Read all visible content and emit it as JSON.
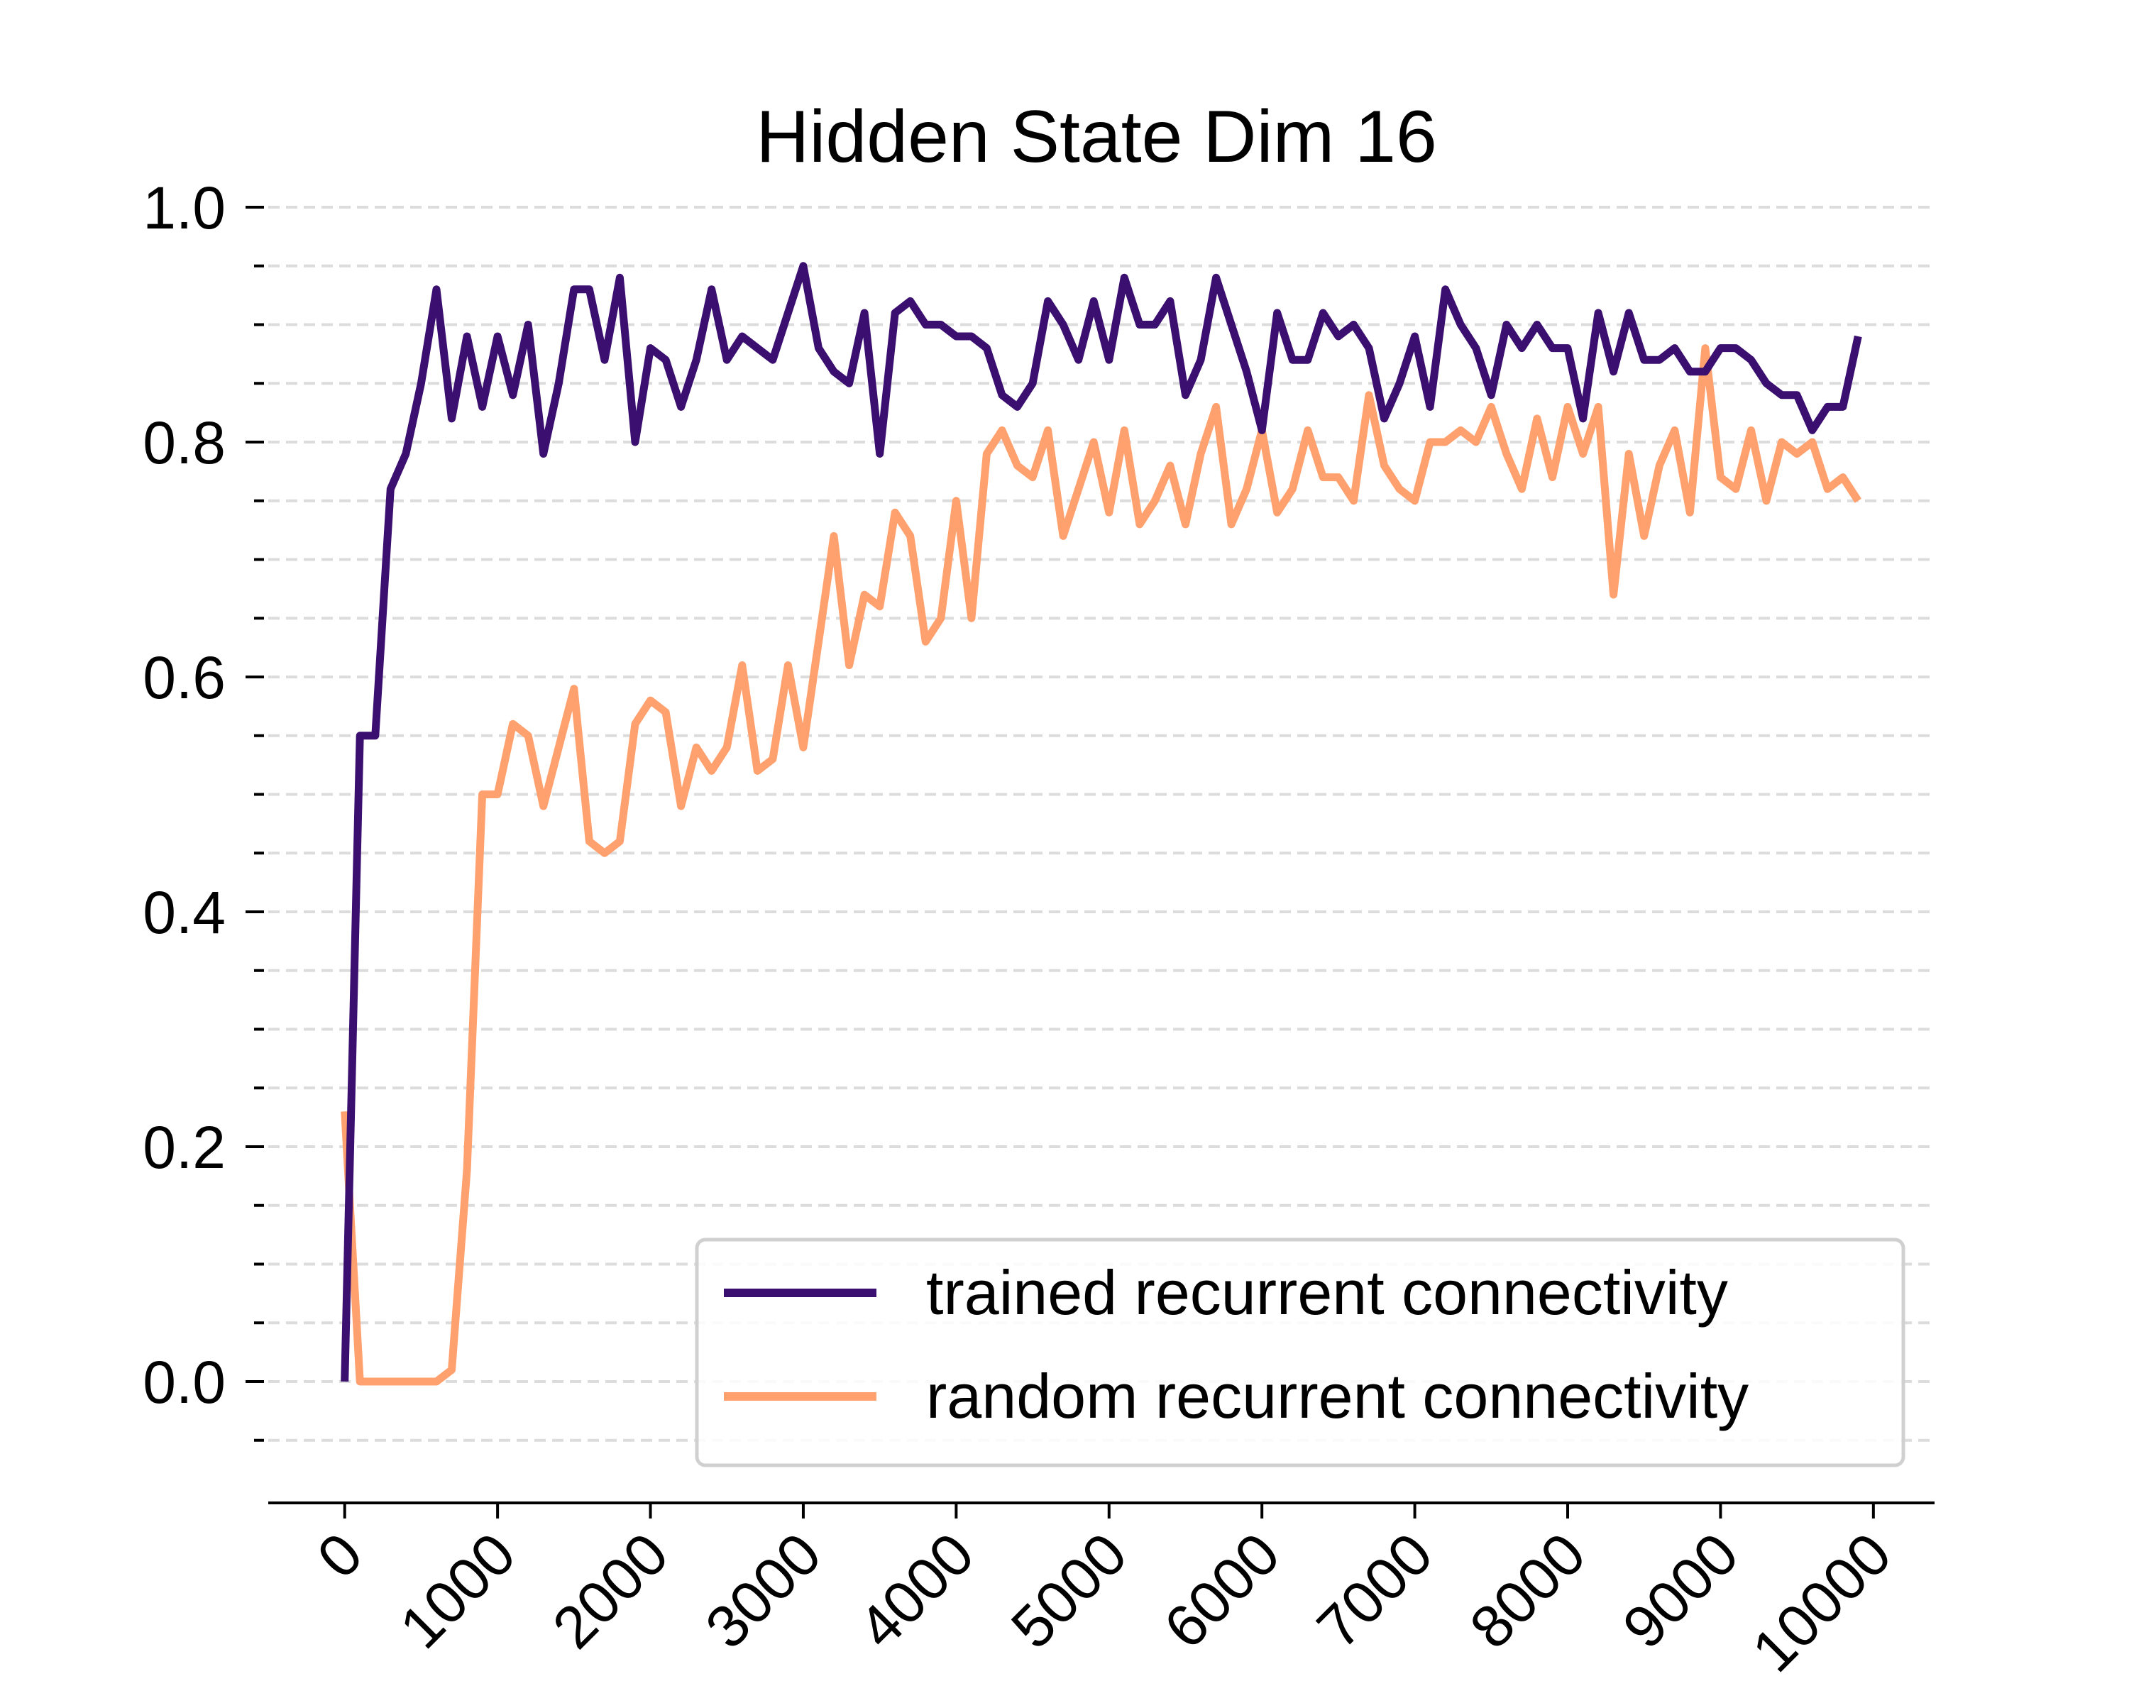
{
  "chart_data": {
    "type": "line",
    "title": "Hidden State Dim 16",
    "xlabel": "",
    "ylabel": "",
    "xlim": [
      -500,
      10400
    ],
    "ylim": [
      -0.1,
      1.0
    ],
    "x_ticks": [
      0,
      1000,
      2000,
      3000,
      4000,
      5000,
      6000,
      7000,
      8000,
      9000,
      10000
    ],
    "y_ticks": [
      0.0,
      0.2,
      0.4,
      0.6,
      0.8,
      1.0
    ],
    "y_tick_labels": [
      "0.0",
      "0.2",
      "0.4",
      "0.6",
      "0.8",
      "1.0"
    ],
    "y_minor_step": 0.05,
    "grid": "horizontal dashed at every 0.05",
    "legend_position": "lower right",
    "x": [
      0,
      100,
      200,
      300,
      400,
      500,
      600,
      700,
      800,
      900,
      1000,
      1100,
      1200,
      1300,
      1400,
      1500,
      1600,
      1700,
      1800,
      1900,
      2000,
      2100,
      2200,
      2300,
      2400,
      2500,
      2600,
      2700,
      2800,
      2900,
      3000,
      3100,
      3200,
      3300,
      3400,
      3500,
      3600,
      3700,
      3800,
      3900,
      4000,
      4100,
      4200,
      4300,
      4400,
      4500,
      4600,
      4700,
      4800,
      4900,
      5000,
      5100,
      5200,
      5300,
      5400,
      5500,
      5600,
      5700,
      5800,
      5900,
      6000,
      6100,
      6200,
      6300,
      6400,
      6500,
      6600,
      6700,
      6800,
      6900,
      7000,
      7100,
      7200,
      7300,
      7400,
      7500,
      7600,
      7700,
      7800,
      7900,
      8000,
      8100,
      8200,
      8300,
      8400,
      8500,
      8600,
      8700,
      8800,
      8900,
      9000,
      9100,
      9200,
      9300,
      9400,
      9500,
      9600,
      9700,
      9800,
      9900
    ],
    "series": [
      {
        "name": "trained recurrent connectivity",
        "color": "#3b0f70",
        "values": [
          0.0,
          0.55,
          0.55,
          0.76,
          0.79,
          0.85,
          0.93,
          0.82,
          0.89,
          0.83,
          0.89,
          0.84,
          0.9,
          0.79,
          0.85,
          0.93,
          0.93,
          0.87,
          0.94,
          0.8,
          0.88,
          0.87,
          0.83,
          0.87,
          0.93,
          0.87,
          0.89,
          0.88,
          0.87,
          0.91,
          0.95,
          0.88,
          0.86,
          0.85,
          0.91,
          0.79,
          0.91,
          0.92,
          0.9,
          0.9,
          0.89,
          0.89,
          0.88,
          0.84,
          0.83,
          0.85,
          0.92,
          0.9,
          0.87,
          0.92,
          0.87,
          0.94,
          0.9,
          0.9,
          0.92,
          0.84,
          0.87,
          0.94,
          0.9,
          0.86,
          0.81,
          0.91,
          0.87,
          0.87,
          0.91,
          0.89,
          0.9,
          0.88,
          0.82,
          0.85,
          0.89,
          0.83,
          0.93,
          0.9,
          0.88,
          0.84,
          0.9,
          0.88,
          0.9,
          0.88,
          0.88,
          0.82,
          0.91,
          0.86,
          0.91,
          0.87,
          0.87,
          0.88,
          0.86,
          0.86,
          0.88,
          0.88,
          0.87,
          0.85,
          0.84,
          0.84,
          0.81,
          0.83,
          0.83,
          0.89
        ]
      },
      {
        "name": "random recurrent connectivity",
        "color": "#fea16e",
        "values": [
          0.23,
          0.0,
          0.0,
          0.0,
          0.0,
          0.0,
          0.0,
          0.01,
          0.18,
          0.5,
          0.5,
          0.56,
          0.55,
          0.49,
          0.54,
          0.59,
          0.46,
          0.45,
          0.46,
          0.56,
          0.58,
          0.57,
          0.49,
          0.54,
          0.52,
          0.54,
          0.61,
          0.52,
          0.53,
          0.61,
          0.54,
          0.63,
          0.72,
          0.61,
          0.67,
          0.66,
          0.74,
          0.72,
          0.63,
          0.65,
          0.75,
          0.65,
          0.79,
          0.81,
          0.78,
          0.77,
          0.81,
          0.72,
          0.76,
          0.8,
          0.74,
          0.81,
          0.73,
          0.75,
          0.78,
          0.73,
          0.79,
          0.83,
          0.73,
          0.76,
          0.81,
          0.74,
          0.76,
          0.81,
          0.77,
          0.77,
          0.75,
          0.84,
          0.78,
          0.76,
          0.75,
          0.8,
          0.8,
          0.81,
          0.8,
          0.83,
          0.79,
          0.76,
          0.82,
          0.77,
          0.83,
          0.79,
          0.83,
          0.67,
          0.79,
          0.72,
          0.78,
          0.81,
          0.74,
          0.88,
          0.77,
          0.76,
          0.81,
          0.75,
          0.8,
          0.79,
          0.8,
          0.76,
          0.77,
          0.75
        ]
      }
    ]
  }
}
